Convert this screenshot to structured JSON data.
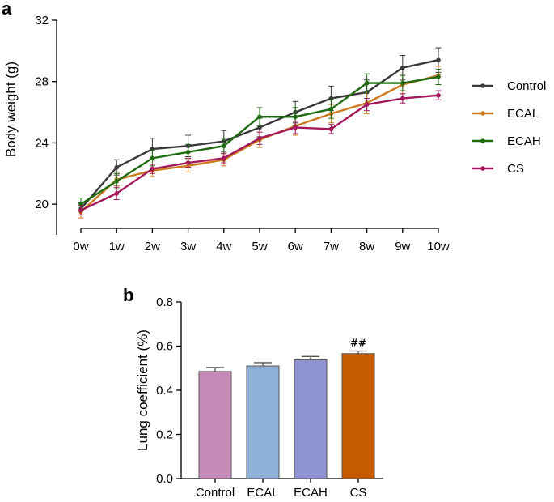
{
  "chart_data": [
    {
      "panel_label": "a",
      "type": "line",
      "title": "",
      "xlabel": "",
      "ylabel": "Body weight (g)",
      "categories": [
        "0w",
        "1w",
        "2w",
        "3w",
        "4w",
        "5w",
        "6w",
        "7w",
        "8w",
        "9w",
        "10w"
      ],
      "ylim": [
        18,
        32
      ],
      "yticks": [
        20,
        24,
        28,
        32
      ],
      "legend_position": "right",
      "grid": false,
      "series": [
        {
          "name": "Control",
          "color": "#3a3a3a",
          "values": [
            19.7,
            22.4,
            23.6,
            23.8,
            24.1,
            25.0,
            26.0,
            26.9,
            27.3,
            28.9,
            29.4
          ],
          "errors": [
            0.4,
            0.5,
            0.7,
            0.7,
            0.7,
            0.6,
            0.7,
            0.8,
            0.8,
            0.8,
            0.8
          ]
        },
        {
          "name": "ECAL",
          "color": "#cc7a1e",
          "values": [
            19.5,
            21.6,
            22.2,
            22.5,
            22.9,
            24.2,
            25.1,
            25.9,
            26.6,
            27.8,
            28.4
          ],
          "errors": [
            0.4,
            0.4,
            0.4,
            0.4,
            0.4,
            0.5,
            0.6,
            0.6,
            0.7,
            0.6,
            0.6
          ]
        },
        {
          "name": "ECAH",
          "color": "#1e6b12",
          "values": [
            20.0,
            21.5,
            23.0,
            23.4,
            23.8,
            25.7,
            25.7,
            26.2,
            27.9,
            27.9,
            28.3
          ],
          "errors": [
            0.4,
            0.5,
            0.5,
            0.5,
            0.5,
            0.6,
            0.6,
            0.6,
            0.6,
            0.5,
            0.5
          ]
        },
        {
          "name": "CS",
          "color": "#a3195b",
          "values": [
            19.6,
            20.7,
            22.3,
            22.7,
            23.0,
            24.3,
            25.0,
            24.9,
            26.5,
            26.9,
            27.1
          ],
          "errors": [
            0.3,
            0.4,
            0.3,
            0.3,
            0.3,
            0.4,
            0.4,
            0.3,
            0.4,
            0.3,
            0.3
          ]
        }
      ]
    },
    {
      "panel_label": "b",
      "type": "bar",
      "title": "",
      "xlabel": "",
      "ylabel": "Lung coefficient (%)",
      "categories": [
        "Control",
        "ECAL",
        "ECAH",
        "CS"
      ],
      "values": [
        0.485,
        0.51,
        0.538,
        0.566
      ],
      "errors": [
        0.018,
        0.015,
        0.015,
        0.012
      ],
      "colors": [
        "#c48bb8",
        "#8fb0d6",
        "#8e93cf",
        "#c55a00"
      ],
      "annotations": [
        "",
        "",
        "",
        "##"
      ],
      "ylim": [
        0,
        0.8
      ],
      "yticks": [
        "0.0",
        "0.2",
        "0.4",
        "0.6",
        "0.8"
      ],
      "grid": false
    }
  ]
}
